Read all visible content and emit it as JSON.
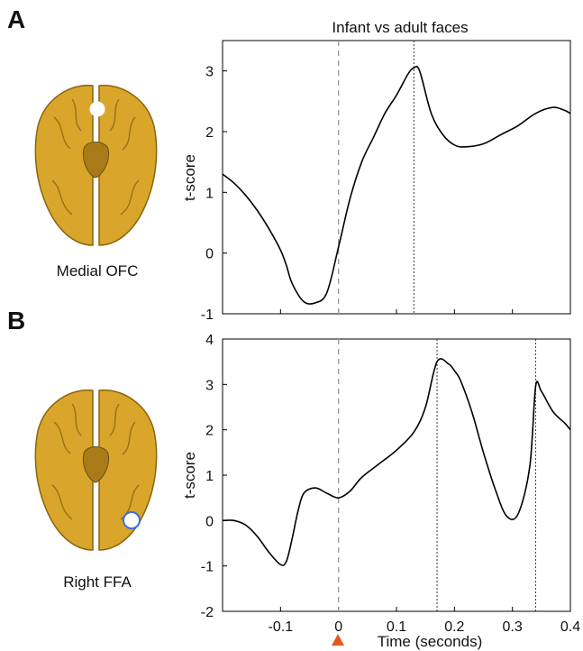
{
  "figure": {
    "title": "Infant vs adult faces",
    "panel_a_letter": "A",
    "panel_b_letter": "B",
    "panel_a_region": "Medial OFC",
    "panel_b_region": "Right FFA",
    "x_axis_label": "Time (seconds)",
    "y_axis_label": "t-score",
    "colors": {
      "brain": "#D9A62B",
      "brain_shadow": "#8A6410",
      "line": "#000000",
      "onset_dashed": "#999999",
      "onset_marker": "#E25A1C",
      "roi_dot_b_border": "#3A6FD8"
    }
  },
  "chart_data": [
    {
      "type": "line",
      "title": "Infant vs adult faces",
      "xlabel": "",
      "ylabel": "t-score",
      "xlim": [
        -0.2,
        0.4
      ],
      "ylim": [
        -1,
        3.5
      ],
      "yticks": [
        -1,
        0,
        1,
        2,
        3
      ],
      "onset_line_x": 0,
      "peak_lines_x": [
        0.13
      ],
      "x": [
        -0.2,
        -0.18,
        -0.16,
        -0.14,
        -0.12,
        -0.1,
        -0.09,
        -0.08,
        -0.06,
        -0.04,
        -0.02,
        0.0,
        0.02,
        0.04,
        0.06,
        0.08,
        0.1,
        0.12,
        0.13,
        0.14,
        0.16,
        0.18,
        0.2,
        0.22,
        0.25,
        0.28,
        0.31,
        0.34,
        0.37,
        0.39,
        0.4
      ],
      "y": [
        1.3,
        1.15,
        0.95,
        0.7,
        0.4,
        0.05,
        -0.2,
        -0.5,
        -0.8,
        -0.82,
        -0.65,
        0.1,
        0.9,
        1.5,
        1.9,
        2.3,
        2.6,
        2.95,
        3.05,
        3.0,
        2.3,
        1.95,
        1.78,
        1.75,
        1.8,
        1.95,
        2.1,
        2.3,
        2.4,
        2.35,
        2.3
      ]
    },
    {
      "type": "line",
      "title": "",
      "xlabel": "Time (seconds)",
      "ylabel": "t-score",
      "xlim": [
        -0.2,
        0.4
      ],
      "ylim": [
        -2,
        4
      ],
      "yticks": [
        -2,
        -1,
        0,
        1,
        2,
        3,
        4
      ],
      "xticks": [
        -0.1,
        0,
        0.1,
        0.2,
        0.3,
        0.4
      ],
      "xtick_labels": [
        "-0.1",
        "0",
        "0.1",
        "0.2",
        "0.3",
        "0.4"
      ],
      "onset_line_x": 0,
      "peak_lines_x": [
        0.17,
        0.34
      ],
      "x": [
        -0.2,
        -0.18,
        -0.16,
        -0.14,
        -0.12,
        -0.1,
        -0.09,
        -0.08,
        -0.07,
        -0.06,
        -0.04,
        -0.02,
        0.0,
        0.02,
        0.04,
        0.07,
        0.1,
        0.13,
        0.15,
        0.17,
        0.19,
        0.2,
        0.21,
        0.23,
        0.25,
        0.27,
        0.29,
        0.31,
        0.33,
        0.34,
        0.35,
        0.37,
        0.39,
        0.4
      ],
      "y": [
        0.0,
        0.0,
        -0.1,
        -0.35,
        -0.7,
        -0.97,
        -0.9,
        -0.4,
        0.2,
        0.6,
        0.72,
        0.6,
        0.5,
        0.65,
        0.95,
        1.25,
        1.55,
        1.95,
        2.5,
        3.5,
        3.45,
        3.3,
        3.1,
        2.4,
        1.5,
        0.7,
        0.1,
        0.15,
        1.2,
        2.95,
        2.85,
        2.4,
        2.15,
        2.0
      ]
    }
  ]
}
